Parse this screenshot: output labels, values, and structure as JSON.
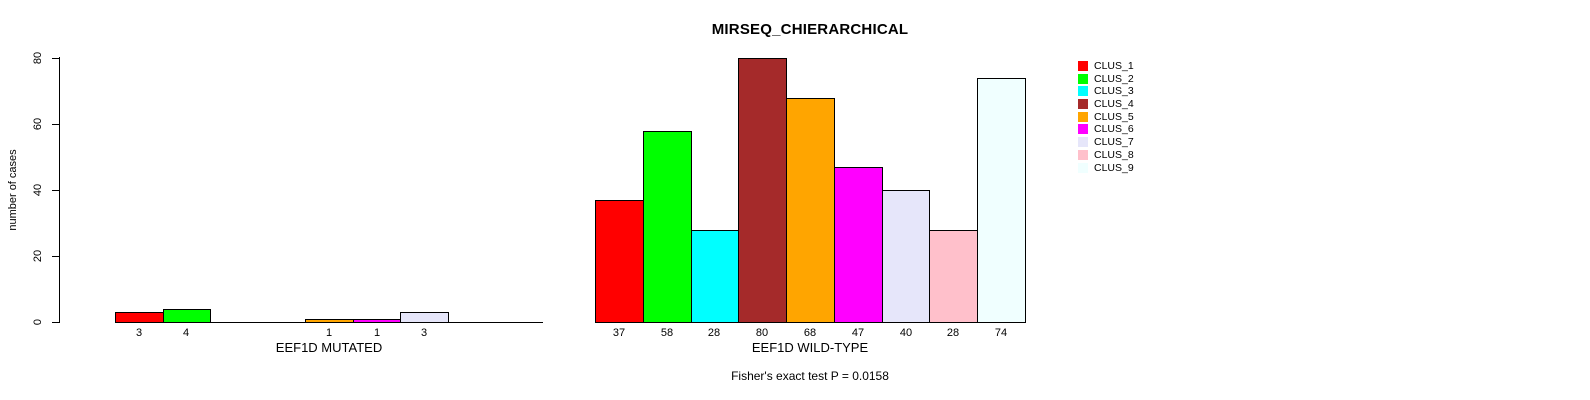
{
  "chart_data": {
    "type": "bar",
    "title": "MIRSEQ_CHIERARCHICAL",
    "ylabel": "number of cases",
    "ylim": [
      0,
      80
    ],
    "yticks": [
      0,
      20,
      40,
      60,
      80
    ],
    "grid": false,
    "legend_position": "right",
    "clusters": [
      "CLUS_1",
      "CLUS_2",
      "CLUS_3",
      "CLUS_4",
      "CLUS_5",
      "CLUS_6",
      "CLUS_7",
      "CLUS_8",
      "CLUS_9"
    ],
    "colors": [
      "#ff0000",
      "#00ff00",
      "#00ffff",
      "#a52a2a",
      "#ffa500",
      "#ff00ff",
      "#e6e6fa",
      "#ffc0cb",
      "#f0ffff"
    ],
    "groups": [
      {
        "xlabel": "EEF1D MUTATED",
        "values": [
          3,
          4,
          0,
          0,
          1,
          1,
          3,
          0,
          0
        ]
      },
      {
        "xlabel": "EEF1D WILD-TYPE",
        "values": [
          37,
          58,
          28,
          80,
          68,
          47,
          40,
          28,
          74
        ]
      }
    ],
    "footnote": "Fisher's exact test P = 0.0158"
  }
}
